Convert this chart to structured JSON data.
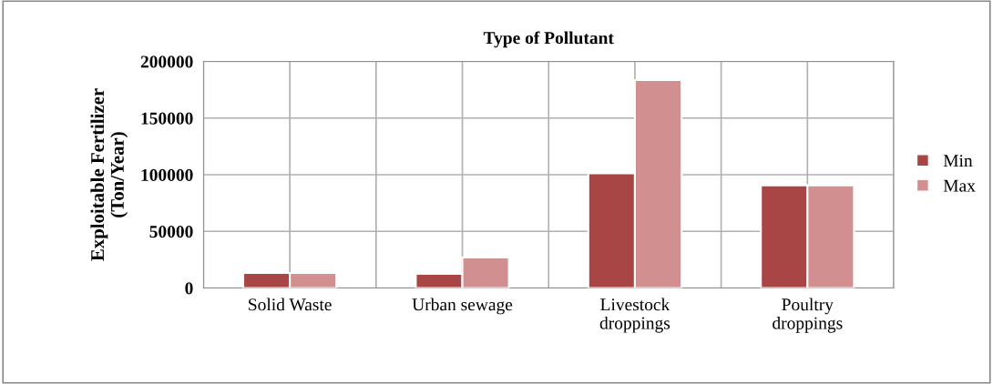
{
  "chart_data": {
    "type": "bar",
    "title": "Type of Pollutant",
    "ylabel": "Exploitable Fertilizer\n(Ton/Year)",
    "categories": [
      "Solid Waste",
      "Urban sewage",
      "Livestock\ndroppings",
      "Poultry\ndroppings"
    ],
    "series": [
      {
        "name": "Min",
        "color": "#a84646",
        "values": [
          13300,
          12400,
          101300,
          90700
        ]
      },
      {
        "name": "Max",
        "color": "#d28f8f",
        "values": [
          13300,
          27000,
          183600,
          90700
        ]
      }
    ],
    "ylim": [
      0,
      200000
    ],
    "yticks": [
      0,
      50000,
      100000,
      150000,
      200000
    ],
    "grid": true,
    "legend": "right"
  }
}
